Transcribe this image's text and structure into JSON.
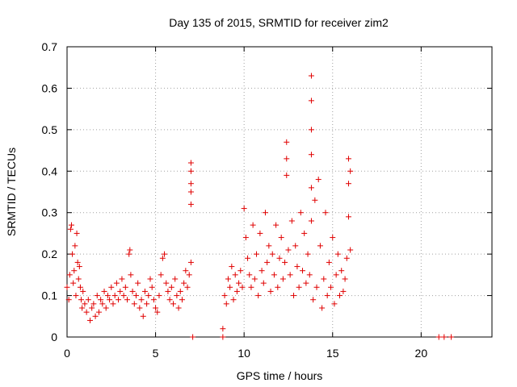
{
  "chart_data": {
    "type": "scatter",
    "title": "Day 135 of 2015, SRMTID for receiver zim2",
    "xlabel": "GPS time / hours",
    "ylabel": "SRMTID / TECUs",
    "xlim": [
      0,
      24
    ],
    "ylim": [
      0,
      0.7
    ],
    "xticks": [
      0,
      5,
      10,
      15,
      20
    ],
    "yticks": [
      0,
      0.1,
      0.2,
      0.3,
      0.4,
      0.5,
      0.6,
      0.7
    ],
    "ytick_labels": [
      "0",
      "0.1",
      "0.2",
      "0.3",
      "0.4",
      "0.5",
      "0.6",
      "0.7"
    ],
    "grid": true,
    "marker": "+",
    "color": "#e00000",
    "series": [
      {
        "name": "SRMTID",
        "x": [
          0.0,
          0.1,
          0.15,
          0.2,
          0.25,
          0.3,
          0.35,
          0.4,
          0.45,
          0.5,
          0.55,
          0.6,
          0.65,
          0.7,
          0.75,
          0.8,
          0.85,
          0.9,
          1.0,
          1.1,
          1.2,
          1.3,
          1.4,
          1.5,
          1.6,
          1.7,
          1.8,
          1.9,
          2.0,
          2.1,
          2.2,
          2.3,
          2.4,
          2.5,
          2.6,
          2.7,
          2.8,
          2.9,
          3.0,
          3.1,
          3.2,
          3.3,
          3.4,
          3.5,
          3.55,
          3.6,
          3.7,
          3.8,
          3.9,
          4.0,
          4.1,
          4.2,
          4.3,
          4.4,
          4.5,
          4.6,
          4.7,
          4.8,
          4.9,
          5.0,
          5.1,
          5.2,
          5.3,
          5.4,
          5.5,
          5.6,
          5.7,
          5.8,
          5.9,
          6.0,
          6.1,
          6.2,
          6.3,
          6.4,
          6.5,
          6.6,
          6.7,
          6.8,
          6.9,
          7.0,
          7.0,
          7.0,
          7.0,
          7.0,
          7.0,
          7.1,
          8.8,
          8.8,
          8.9,
          9.0,
          9.1,
          9.2,
          9.3,
          9.4,
          9.5,
          9.6,
          9.7,
          9.8,
          9.9,
          10.0,
          10.1,
          10.2,
          10.3,
          10.4,
          10.5,
          10.6,
          10.7,
          10.8,
          10.9,
          11.0,
          11.1,
          11.2,
          11.3,
          11.4,
          11.5,
          11.6,
          11.7,
          11.8,
          11.9,
          12.0,
          12.1,
          12.2,
          12.3,
          12.4,
          12.4,
          12.4,
          12.5,
          12.6,
          12.7,
          12.8,
          12.9,
          13.0,
          13.1,
          13.2,
          13.3,
          13.4,
          13.5,
          13.6,
          13.7,
          13.8,
          13.8,
          13.8,
          13.8,
          13.8,
          13.8,
          13.9,
          14.0,
          14.1,
          14.2,
          14.3,
          14.4,
          14.5,
          14.6,
          14.7,
          14.8,
          14.9,
          15.0,
          15.1,
          15.2,
          15.3,
          15.4,
          15.5,
          15.6,
          15.7,
          15.8,
          15.9,
          15.9,
          15.9,
          16.0,
          16.0,
          21.0,
          21.3,
          21.7
        ],
        "y": [
          0.12,
          0.09,
          0.15,
          0.26,
          0.27,
          0.2,
          0.13,
          0.16,
          0.22,
          0.1,
          0.25,
          0.18,
          0.14,
          0.17,
          0.12,
          0.09,
          0.07,
          0.11,
          0.08,
          0.06,
          0.09,
          0.04,
          0.07,
          0.08,
          0.05,
          0.1,
          0.06,
          0.09,
          0.08,
          0.11,
          0.07,
          0.1,
          0.09,
          0.12,
          0.08,
          0.1,
          0.13,
          0.09,
          0.11,
          0.14,
          0.1,
          0.12,
          0.09,
          0.2,
          0.21,
          0.15,
          0.11,
          0.08,
          0.1,
          0.13,
          0.07,
          0.09,
          0.05,
          0.11,
          0.08,
          0.1,
          0.14,
          0.12,
          0.09,
          0.07,
          0.06,
          0.1,
          0.15,
          0.19,
          0.2,
          0.13,
          0.11,
          0.09,
          0.12,
          0.08,
          0.14,
          0.1,
          0.07,
          0.11,
          0.09,
          0.13,
          0.16,
          0.12,
          0.15,
          0.42,
          0.4,
          0.37,
          0.35,
          0.32,
          0.18,
          0.0,
          0.0,
          0.02,
          0.1,
          0.08,
          0.14,
          0.12,
          0.17,
          0.09,
          0.15,
          0.11,
          0.13,
          0.16,
          0.12,
          0.31,
          0.24,
          0.19,
          0.15,
          0.12,
          0.27,
          0.14,
          0.2,
          0.1,
          0.25,
          0.16,
          0.13,
          0.3,
          0.18,
          0.22,
          0.11,
          0.2,
          0.15,
          0.27,
          0.12,
          0.19,
          0.24,
          0.14,
          0.18,
          0.47,
          0.43,
          0.39,
          0.21,
          0.15,
          0.28,
          0.1,
          0.22,
          0.17,
          0.12,
          0.3,
          0.16,
          0.25,
          0.13,
          0.2,
          0.15,
          0.63,
          0.57,
          0.5,
          0.44,
          0.36,
          0.28,
          0.09,
          0.33,
          0.12,
          0.38,
          0.22,
          0.07,
          0.14,
          0.3,
          0.1,
          0.18,
          0.12,
          0.24,
          0.08,
          0.15,
          0.2,
          0.1,
          0.16,
          0.11,
          0.14,
          0.19,
          0.37,
          0.43,
          0.29,
          0.4,
          0.21,
          0.0,
          0.0,
          0.0
        ]
      }
    ]
  }
}
